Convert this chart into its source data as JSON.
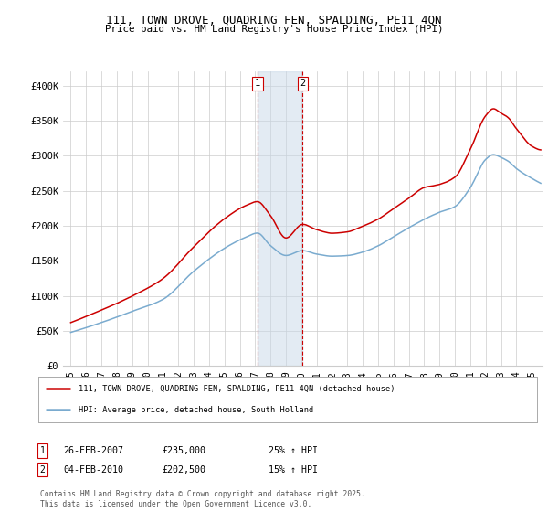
{
  "title_line1": "111, TOWN DROVE, QUADRING FEN, SPALDING, PE11 4QN",
  "title_line2": "Price paid vs. HM Land Registry's House Price Index (HPI)",
  "background_color": "#ffffff",
  "plot_bg_color": "#ffffff",
  "grid_color": "#cccccc",
  "red_color": "#cc0000",
  "blue_color": "#7aabcf",
  "marker1_x": 2007.15,
  "marker2_x": 2010.09,
  "marker1_date": "26-FEB-2007",
  "marker1_price": "£235,000",
  "marker1_hpi": "25% ↑ HPI",
  "marker2_date": "04-FEB-2010",
  "marker2_price": "£202,500",
  "marker2_hpi": "15% ↑ HPI",
  "legend_line1": "111, TOWN DROVE, QUADRING FEN, SPALDING, PE11 4QN (detached house)",
  "legend_line2": "HPI: Average price, detached house, South Holland",
  "footer": "Contains HM Land Registry data © Crown copyright and database right 2025.\nThis data is licensed under the Open Government Licence v3.0.",
  "ylim": [
    0,
    420000
  ],
  "xlim_start": 1994.5,
  "xlim_end": 2025.7,
  "yticks": [
    0,
    50000,
    100000,
    150000,
    200000,
    250000,
    300000,
    350000,
    400000
  ],
  "ytick_labels": [
    "£0",
    "£50K",
    "£100K",
    "£150K",
    "£200K",
    "£250K",
    "£300K",
    "£350K",
    "£400K"
  ],
  "xticks": [
    1995,
    1996,
    1997,
    1998,
    1999,
    2000,
    2001,
    2002,
    2003,
    2004,
    2005,
    2006,
    2007,
    2008,
    2009,
    2010,
    2011,
    2012,
    2013,
    2014,
    2015,
    2016,
    2017,
    2018,
    2019,
    2020,
    2021,
    2022,
    2023,
    2024,
    2025
  ],
  "span_color": "#c8d8e8",
  "span_alpha": 0.5
}
